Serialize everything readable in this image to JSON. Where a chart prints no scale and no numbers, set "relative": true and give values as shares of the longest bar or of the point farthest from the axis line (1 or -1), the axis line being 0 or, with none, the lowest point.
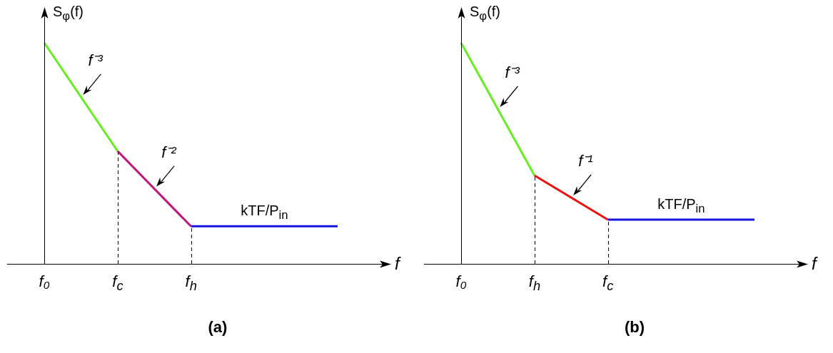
{
  "chart_data": [
    {
      "type": "line",
      "relative": true,
      "title": "(a)",
      "xlabel": "f",
      "ylabel": "S$_{φ}$(f)",
      "categories": [
        "f₀",
        "f$_{c}$",
        "f$_{h}$",
        null,
        null
      ],
      "grid": "x",
      "legend": false,
      "marker": "none",
      "series": [
        {
          "name": "f⁻³",
          "color": "#66ee22",
          "values": [
            1,
            0.51,
            null,
            null,
            null
          ]
        },
        {
          "name": "f⁻²",
          "color": "#c0187a",
          "values": [
            null,
            0.51,
            0.17,
            null,
            null
          ]
        },
        {
          "name": "kTF/P$_{in}$",
          "color": "#1515dd",
          "values": [
            null,
            null,
            0.17,
            0.17,
            0.17
          ]
        }
      ]
    },
    {
      "type": "line",
      "relative": true,
      "title": "(b)",
      "xlabel": "f",
      "ylabel": "S$_{φ}$(f)",
      "categories": [
        "f₀",
        "f$_{h}$",
        "f$_{c}$",
        null,
        null
      ],
      "grid": "x",
      "legend": false,
      "marker": "none",
      "series": [
        {
          "name": "f⁻³",
          "color": "#66ee22",
          "values": [
            1,
            0.4,
            null,
            null,
            null
          ]
        },
        {
          "name": "f⁻¹",
          "color": "#ee1111",
          "values": [
            null,
            0.4,
            0.2,
            null,
            null
          ]
        },
        {
          "name": "kTF/P$_{in}$",
          "color": "#1515dd",
          "values": [
            null,
            null,
            0.2,
            0.2,
            0.2
          ]
        }
      ]
    }
  ]
}
